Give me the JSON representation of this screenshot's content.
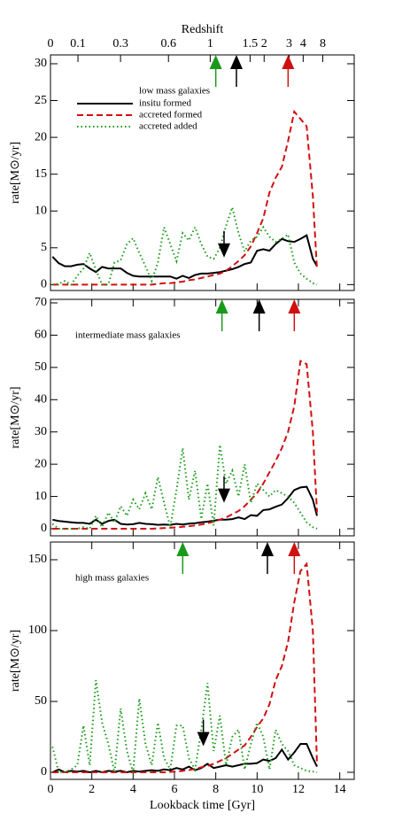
{
  "chart_data": [
    {
      "type": "line",
      "annotation": "low mass galaxies",
      "ylabel": "rate[M⊙/yr]",
      "x2label": "Redshift",
      "x2ticks": [
        0,
        {
          "value": 1.33,
          "label": "0.1"
        },
        {
          "value": 3.39,
          "label": "0.3"
        },
        {
          "value": 5.71,
          "label": "0.6"
        },
        {
          "value": 7.73,
          "label": "1"
        },
        {
          "value": 9.66,
          "label": "1.5"
        },
        {
          "value": 10.34,
          "label": "2"
        },
        {
          "value": 11.55,
          "label": "3"
        },
        {
          "value": 12.23,
          "label": "4"
        },
        {
          "value": 13.18,
          "label": "8"
        }
      ],
      "xlim": [
        0,
        14.7
      ],
      "xticks": [
        0,
        2,
        4,
        6,
        8,
        10,
        12,
        14
      ],
      "ylim": [
        -0.8,
        31.2
      ],
      "yticks": [
        0,
        5,
        10,
        15,
        20,
        25,
        30
      ],
      "legend": "upper left",
      "x": [
        0.1,
        0.4,
        0.7,
        1.0,
        1.3,
        1.6,
        1.9,
        2.2,
        2.5,
        2.8,
        3.1,
        3.4,
        3.7,
        4.0,
        4.3,
        4.6,
        4.9,
        5.2,
        5.5,
        5.8,
        6.1,
        6.4,
        6.7,
        7.0,
        7.3,
        7.6,
        7.9,
        8.2,
        8.5,
        8.8,
        9.1,
        9.4,
        9.7,
        10.0,
        10.3,
        10.6,
        10.9,
        11.2,
        11.5,
        11.8,
        12.1,
        12.4,
        12.7,
        12.9
      ],
      "series": [
        {
          "name": "insitu formed",
          "color": "#000000",
          "dash": "solid",
          "values": [
            3.8,
            2.9,
            2.5,
            2.5,
            2.7,
            2.8,
            2.2,
            1.7,
            2.4,
            2.2,
            2.2,
            2.2,
            1.6,
            1.2,
            1.1,
            1.1,
            1.1,
            1.1,
            1.1,
            1.1,
            0.8,
            1.2,
            0.9,
            1.3,
            1.5,
            1.5,
            1.6,
            1.7,
            1.9,
            2.1,
            2.4,
            2.8,
            3.0,
            4.6,
            4.8,
            4.6,
            5.5,
            6.2,
            5.9,
            5.8,
            6.2,
            6.7,
            3.5,
            2.5
          ]
        },
        {
          "name": "accreted formed",
          "color": "#d01010",
          "dash": "dashed",
          "values": [
            0,
            0,
            0,
            0,
            0,
            0,
            0,
            0,
            0,
            0,
            0,
            0,
            0,
            0,
            0,
            0,
            0,
            0.1,
            0.2,
            0.2,
            0.3,
            0.4,
            0.6,
            0.7,
            0.9,
            1.1,
            1.3,
            1.5,
            1.9,
            2.5,
            3.2,
            4.0,
            5.2,
            7.0,
            9.0,
            12.5,
            14.5,
            16.0,
            19.5,
            23.5,
            22.5,
            21.5,
            12.0,
            2.0
          ]
        },
        {
          "name": "accreted added",
          "color": "#1a9a1a",
          "dash": "dotted",
          "values": [
            0,
            0.1,
            0.5,
            0,
            1.2,
            2.2,
            4.3,
            2.0,
            0,
            0,
            3.0,
            3.3,
            5.5,
            6.3,
            4.3,
            2.5,
            0.5,
            3.0,
            7.8,
            5.5,
            3.2,
            7.0,
            6.0,
            7.8,
            5.5,
            3.8,
            3.5,
            5.0,
            8.0,
            10.5,
            7.0,
            4.5,
            6.0,
            6.5,
            7.8,
            6.5,
            5.8,
            6.2,
            6.8,
            3.0,
            1.5,
            0.8,
            0.2,
            0
          ]
        }
      ],
      "arrows": [
        {
          "x": 8.0,
          "color": "#1a9a1a",
          "direction": "up"
        },
        {
          "x": 9.0,
          "color": "#000000",
          "direction": "up"
        },
        {
          "x": 11.5,
          "color": "#d01010",
          "direction": "up"
        },
        {
          "x": 8.4,
          "color": "#000000",
          "direction": "down"
        }
      ]
    },
    {
      "type": "line",
      "annotation": "intermediate mass galaxies",
      "ylabel": "rate[M⊙/yr]",
      "xlim": [
        0,
        14.7
      ],
      "xticks": [
        0,
        2,
        4,
        6,
        8,
        10,
        12,
        14
      ],
      "ylim": [
        -2.2,
        71.1
      ],
      "yticks": [
        0,
        10,
        20,
        30,
        40,
        50,
        60,
        70
      ],
      "x": [
        0.1,
        0.4,
        0.7,
        1.0,
        1.3,
        1.6,
        1.9,
        2.2,
        2.5,
        2.8,
        3.1,
        3.4,
        3.7,
        4.0,
        4.3,
        4.6,
        4.9,
        5.2,
        5.5,
        5.8,
        6.1,
        6.4,
        6.7,
        7.0,
        7.3,
        7.6,
        7.9,
        8.2,
        8.5,
        8.8,
        9.1,
        9.4,
        9.7,
        10.0,
        10.3,
        10.6,
        10.9,
        11.2,
        11.5,
        11.8,
        12.1,
        12.4,
        12.7,
        12.9
      ],
      "series": [
        {
          "color": "#000000",
          "dash": "solid",
          "values": [
            2.8,
            2.4,
            2.2,
            2.0,
            1.8,
            1.8,
            1.5,
            2.8,
            1.5,
            2.4,
            2.8,
            1.5,
            1.3,
            1.4,
            1.8,
            1.5,
            1.4,
            1.2,
            1.3,
            1.2,
            1.5,
            1.3,
            1.6,
            1.7,
            2.0,
            2.2,
            2.5,
            2.8,
            2.8,
            3.0,
            3.5,
            3.0,
            4.2,
            4.0,
            5.8,
            6.0,
            6.8,
            7.5,
            9.5,
            12.0,
            12.8,
            13.0,
            9.0,
            4.0
          ]
        },
        {
          "color": "#d01010",
          "dash": "dashed",
          "values": [
            0,
            0,
            0,
            0,
            0,
            0,
            0,
            0,
            0,
            0,
            0,
            0,
            0,
            0,
            0,
            0,
            0,
            0.1,
            0.2,
            0.3,
            0.4,
            0.6,
            0.8,
            1.0,
            1.3,
            1.7,
            2.2,
            2.8,
            3.5,
            4.5,
            5.5,
            7.0,
            9.0,
            11.0,
            14.0,
            17.5,
            21.0,
            25.0,
            30.0,
            38.0,
            52.0,
            51.0,
            30.0,
            5.0
          ]
        },
        {
          "color": "#1a9a1a",
          "dash": "dotted",
          "values": [
            1.5,
            0,
            0,
            0,
            0,
            0.5,
            0,
            4.0,
            0.5,
            5.0,
            2.0,
            7.0,
            4.0,
            9.0,
            6.0,
            11.0,
            6.0,
            16.0,
            8.0,
            0.5,
            12.0,
            25.0,
            9.0,
            18.0,
            3.0,
            14.0,
            1.0,
            26.0,
            14.0,
            18.0,
            10.0,
            20.0,
            8.0,
            14.0,
            12.0,
            10.0,
            12.0,
            11.0,
            10.0,
            8.0,
            5.0,
            2.0,
            0.5,
            0
          ]
        }
      ],
      "arrows": [
        {
          "x": 8.3,
          "color": "#1a9a1a",
          "direction": "up"
        },
        {
          "x": 10.1,
          "color": "#000000",
          "direction": "up"
        },
        {
          "x": 11.8,
          "color": "#d01010",
          "direction": "up"
        },
        {
          "x": 8.4,
          "color": "#000000",
          "direction": "down"
        }
      ]
    },
    {
      "type": "line",
      "annotation": "high mass galaxies",
      "ylabel": "rate[M⊙/yr]",
      "xlabel": "Lookback time [Gyr]",
      "xlim": [
        0,
        14.7
      ],
      "xticks": [
        0,
        2,
        4,
        6,
        8,
        10,
        12,
        14
      ],
      "ylim": [
        -5,
        162.5
      ],
      "yticks": [
        0,
        50,
        100,
        150
      ],
      "x": [
        0.1,
        0.4,
        0.7,
        1.0,
        1.3,
        1.6,
        1.9,
        2.2,
        2.5,
        2.8,
        3.1,
        3.4,
        3.7,
        4.0,
        4.3,
        4.6,
        4.9,
        5.2,
        5.5,
        5.8,
        6.1,
        6.4,
        6.7,
        7.0,
        7.3,
        7.6,
        7.9,
        8.2,
        8.5,
        8.8,
        9.1,
        9.4,
        9.7,
        10.0,
        10.3,
        10.6,
        10.9,
        11.2,
        11.5,
        11.8,
        12.1,
        12.4,
        12.7,
        12.9
      ],
      "series": [
        {
          "color": "#000000",
          "dash": "solid",
          "values": [
            0,
            2,
            0,
            1,
            0.5,
            1,
            0,
            1,
            0,
            1,
            0.5,
            1,
            0,
            1,
            0.5,
            1,
            1.5,
            1,
            2,
            1.5,
            3,
            2,
            4,
            1.5,
            3,
            6,
            3,
            4,
            5,
            4,
            5,
            6,
            6,
            6.5,
            9,
            8,
            10,
            16,
            9,
            14,
            20,
            20,
            10,
            4
          ]
        },
        {
          "color": "#d01010",
          "dash": "dashed",
          "values": [
            0,
            0,
            0,
            0,
            0,
            0,
            0,
            0,
            0,
            0,
            0,
            0,
            0,
            0,
            0,
            0,
            0,
            0,
            0,
            0.3,
            0.5,
            1,
            1.5,
            2.5,
            3.5,
            4.5,
            6,
            8,
            10,
            13,
            16,
            19,
            25,
            32,
            38,
            48,
            65,
            75,
            92,
            120,
            142,
            147,
            100,
            5
          ]
        },
        {
          "color": "#1a9a1a",
          "dash": "dotted",
          "values": [
            18,
            0,
            0,
            2,
            5,
            33,
            5,
            65,
            35,
            20,
            0,
            45,
            15,
            0,
            52,
            20,
            5,
            35,
            10,
            2,
            33,
            33,
            10,
            2,
            30,
            63,
            15,
            40,
            5,
            25,
            30,
            2,
            20,
            35,
            25,
            2,
            30,
            20,
            15,
            5,
            3,
            1,
            0.5,
            0
          ]
        }
      ],
      "arrows": [
        {
          "x": 6.4,
          "color": "#1a9a1a",
          "direction": "up"
        },
        {
          "x": 10.5,
          "color": "#000000",
          "direction": "up"
        },
        {
          "x": 11.8,
          "color": "#d01010",
          "direction": "up"
        },
        {
          "x": 7.4,
          "color": "#000000",
          "direction": "down"
        }
      ]
    }
  ]
}
